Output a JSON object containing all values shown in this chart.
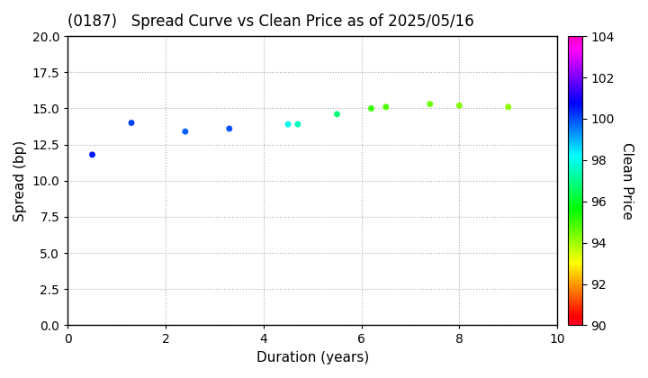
{
  "title": "(0187)   Spread Curve vs Clean Price as of 2025/05/16",
  "xlabel": "Duration (years)",
  "ylabel": "Spread (bp)",
  "colorbar_label": "Clean Price",
  "xlim": [
    0,
    10
  ],
  "ylim": [
    0.0,
    20.0
  ],
  "yticks": [
    0.0,
    2.5,
    5.0,
    7.5,
    10.0,
    12.5,
    15.0,
    17.5,
    20.0
  ],
  "xticks": [
    0,
    2,
    4,
    6,
    8,
    10
  ],
  "colorbar_min": 90,
  "colorbar_max": 104,
  "points": [
    {
      "duration": 0.5,
      "spread": 11.8,
      "price": 100.5
    },
    {
      "duration": 1.3,
      "spread": 14.0,
      "price": 100.1
    },
    {
      "duration": 2.4,
      "spread": 13.4,
      "price": 99.8
    },
    {
      "duration": 3.3,
      "spread": 13.6,
      "price": 99.9
    },
    {
      "duration": 4.5,
      "spread": 13.9,
      "price": 98.0
    },
    {
      "duration": 4.7,
      "spread": 13.9,
      "price": 97.5
    },
    {
      "duration": 5.5,
      "spread": 14.6,
      "price": 96.8
    },
    {
      "duration": 6.2,
      "spread": 15.0,
      "price": 95.0
    },
    {
      "duration": 6.5,
      "spread": 15.1,
      "price": 94.8
    },
    {
      "duration": 7.4,
      "spread": 15.3,
      "price": 94.5
    },
    {
      "duration": 8.0,
      "spread": 15.2,
      "price": 94.3
    },
    {
      "duration": 9.0,
      "spread": 15.1,
      "price": 94.2
    }
  ],
  "marker_size": 25,
  "background_color": "#ffffff",
  "grid_color": "#aaaaaa",
  "title_fontsize": 12,
  "axis_fontsize": 11,
  "tick_fontsize": 10
}
